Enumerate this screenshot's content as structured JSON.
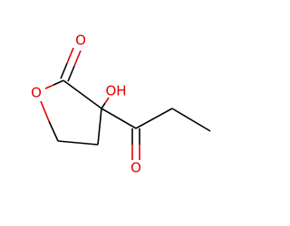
{
  "atoms": [
    {
      "label": "O"
    },
    {
      "label": "O"
    },
    {
      "label": "OH"
    },
    {
      "label": "O"
    }
  ]
}
